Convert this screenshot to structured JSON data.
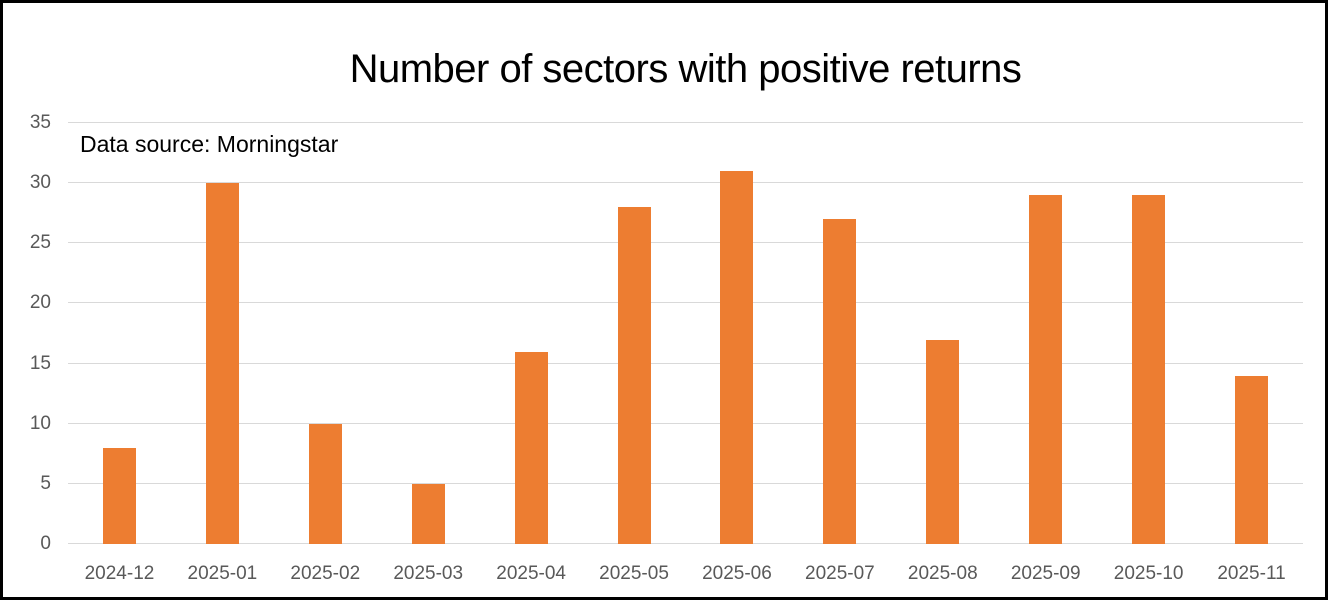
{
  "frame": {
    "background": "#ffffff",
    "border_color": "#000000"
  },
  "chart_data": {
    "type": "bar",
    "title": "Number of sectors with positive returns",
    "annotation": "Data source: Morningstar",
    "categories": [
      "2024-12",
      "2025-01",
      "2025-02",
      "2025-03",
      "2025-04",
      "2025-05",
      "2025-06",
      "2025-07",
      "2025-08",
      "2025-09",
      "2025-10",
      "2025-11"
    ],
    "values": [
      8,
      30,
      10,
      5,
      16,
      28,
      31,
      27,
      17,
      29,
      29,
      14
    ],
    "xlabel": "",
    "ylabel": "",
    "ylim": [
      0,
      35
    ],
    "yticks": [
      0,
      5,
      10,
      15,
      20,
      25,
      30,
      35
    ],
    "grid": true,
    "legend": "none",
    "colors": {
      "bar": "#ED7D31",
      "gridline": "#D9D9D9",
      "tick_label": "#595959",
      "title": "#000000",
      "annotation": "#000000"
    }
  }
}
